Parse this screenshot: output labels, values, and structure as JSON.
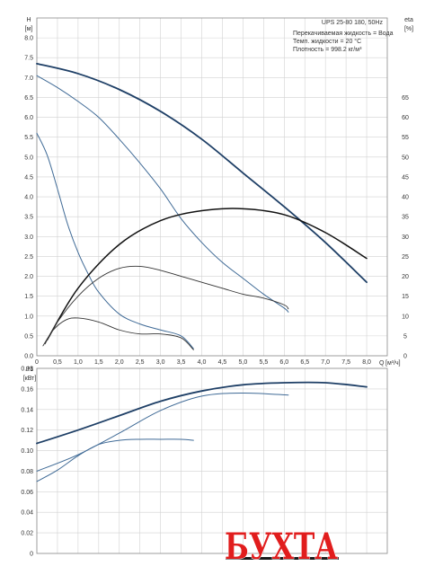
{
  "chart_data": [
    {
      "type": "line",
      "title": "",
      "info_lines": [
        "UPS 25-80 180, 50Hz",
        "Перекачиваемая жидкость = Вода",
        "Темп. жидкости = 20 °C",
        "Плотность = 998.2 кг/м³"
      ],
      "ylabel": "H",
      "yunit": "[м]",
      "y2label": "eta",
      "y2unit": "[%]",
      "xlabel": "Q",
      "xunit": "[м³/ч]",
      "xlim": [
        0,
        8.5
      ],
      "ylim": [
        0,
        8.5
      ],
      "y2lim": [
        0,
        85
      ],
      "xticks": [
        "0",
        "0,5",
        "1,0",
        "1,5",
        "2,0",
        "2,5",
        "3,0",
        "3,5",
        "4,0",
        "4,5",
        "5,0",
        "5,5",
        "6,0",
        "6,5",
        "7,0",
        "7,5",
        "8,0"
      ],
      "xtick_values": [
        0,
        0.5,
        1,
        1.5,
        2,
        2.5,
        3,
        3.5,
        4,
        4.5,
        5,
        5.5,
        6,
        6.5,
        7,
        7.5,
        8
      ],
      "yticks": [
        "0.0",
        "0.5",
        "1.0",
        "1.5",
        "2.0",
        "2.5",
        "3.0",
        "3.5",
        "4.0",
        "4.5",
        "5.0",
        "5.5",
        "6.0",
        "6.5",
        "7.0",
        "7.5",
        "8.0"
      ],
      "ytick_values": [
        0,
        0.5,
        1,
        1.5,
        2,
        2.5,
        3,
        3.5,
        4,
        4.5,
        5,
        5.5,
        6,
        6.5,
        7,
        7.5,
        8
      ],
      "y2ticks": [
        "0",
        "5",
        "10",
        "15",
        "20",
        "25",
        "30",
        "35",
        "40",
        "45",
        "50",
        "55",
        "60",
        "65"
      ],
      "y2tick_values": [
        0,
        5,
        10,
        15,
        20,
        25,
        30,
        35,
        40,
        45,
        50,
        55,
        60,
        65
      ],
      "grid": true,
      "series": [
        {
          "axis": "H",
          "color": "#1e3f66",
          "width": 1.8,
          "x": [
            0,
            1,
            2,
            3,
            4,
            5,
            6,
            7,
            8
          ],
          "y": [
            7.35,
            7.1,
            6.7,
            6.15,
            5.45,
            4.6,
            3.75,
            2.85,
            1.85
          ]
        },
        {
          "axis": "H",
          "color": "#3f6a96",
          "width": 1.0,
          "x": [
            0,
            0.5,
            1,
            1.5,
            2,
            2.5,
            3,
            3.5,
            4,
            4.5,
            5,
            5.5,
            6,
            6.1
          ],
          "y": [
            7.05,
            6.75,
            6.4,
            6.0,
            5.45,
            4.85,
            4.2,
            3.45,
            2.85,
            2.35,
            1.95,
            1.55,
            1.2,
            1.1
          ]
        },
        {
          "axis": "H",
          "color": "#3f6a96",
          "width": 1.0,
          "x": [
            0,
            0.25,
            0.5,
            0.75,
            1,
            1.25,
            1.5,
            2,
            2.5,
            3,
            3.5,
            3.8
          ],
          "y": [
            5.6,
            5.05,
            4.2,
            3.3,
            2.6,
            2.05,
            1.6,
            1.05,
            0.8,
            0.65,
            0.5,
            0.18
          ]
        },
        {
          "axis": "eta",
          "color": "#111111",
          "width": 1.5,
          "x": [
            0.25,
            1,
            2,
            3,
            4,
            5,
            6,
            7,
            8
          ],
          "y": [
            4,
            17,
            28,
            34,
            36.5,
            37,
            35.5,
            31,
            24.5
          ]
        },
        {
          "axis": "eta",
          "color": "#333333",
          "width": 0.9,
          "x": [
            0.2,
            0.5,
            1,
            1.5,
            2,
            2.5,
            3,
            3.5,
            4,
            4.5,
            5,
            5.5,
            6,
            6.1
          ],
          "y": [
            3,
            8.5,
            15,
            19.5,
            22,
            22.5,
            21.5,
            20,
            18.5,
            17,
            15.5,
            14.5,
            12.8,
            11.8
          ]
        },
        {
          "axis": "eta",
          "color": "#333333",
          "width": 0.9,
          "x": [
            0.15,
            0.4,
            0.7,
            1,
            1.5,
            2,
            2.5,
            3,
            3.5,
            3.8
          ],
          "y": [
            2.5,
            6.5,
            9,
            9.5,
            8.5,
            6.5,
            5.5,
            5.5,
            4.5,
            1.5
          ]
        }
      ]
    },
    {
      "type": "line",
      "title": "",
      "ylabel": "P1",
      "yunit": "[кВт]",
      "xlim": [
        0,
        8.5
      ],
      "ylim": [
        0,
        0.18
      ],
      "yticks": [
        "0",
        "0.02",
        "0.04",
        "0.06",
        "0.08",
        "0.10",
        "0.12",
        "0.14",
        "0.16",
        "0.18"
      ],
      "ytick_values": [
        0,
        0.02,
        0.04,
        0.06,
        0.08,
        0.1,
        0.12,
        0.14,
        0.16,
        0.18
      ],
      "grid": true,
      "series": [
        {
          "color": "#1e3f66",
          "width": 1.8,
          "x": [
            0,
            1,
            2,
            3,
            4,
            5,
            6,
            7,
            8
          ],
          "y": [
            0.107,
            0.12,
            0.134,
            0.148,
            0.158,
            0.164,
            0.166,
            0.166,
            0.162
          ]
        },
        {
          "color": "#3f6a96",
          "width": 1.0,
          "x": [
            0,
            1,
            2,
            3,
            4,
            5,
            6.1
          ],
          "y": [
            0.08,
            0.096,
            0.117,
            0.139,
            0.153,
            0.156,
            0.154
          ]
        },
        {
          "color": "#3f6a96",
          "width": 1.0,
          "x": [
            0,
            0.5,
            1,
            1.5,
            2,
            2.5,
            3,
            3.5,
            3.8
          ],
          "y": [
            0.07,
            0.081,
            0.095,
            0.106,
            0.11,
            0.111,
            0.111,
            0.111,
            0.11
          ]
        }
      ]
    }
  ],
  "watermark": {
    "text": "БУХТА",
    "color": "#e11d1d"
  }
}
